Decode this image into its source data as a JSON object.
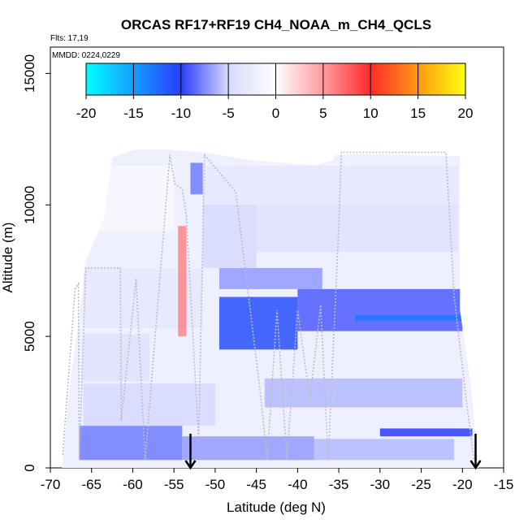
{
  "chart_data": {
    "type": "heatmap",
    "title": "ORCAS RF17+RF19 CH4_NOAA_m_CH4_QCLS",
    "annotations": [
      "Flts: 17,19",
      "MMDD: 0224,0229"
    ],
    "xlabel": "Latitude (deg N)",
    "ylabel": "Altitude (m)",
    "xlim": [
      -70,
      -15
    ],
    "ylim": [
      0,
      16000
    ],
    "x_ticks": [
      -70,
      -65,
      -60,
      -55,
      -50,
      -45,
      -40,
      -35,
      -30,
      -25,
      -20,
      -15
    ],
    "y_ticks": [
      0,
      5000,
      10000,
      15000
    ],
    "colorbar": {
      "ticks": [
        -20,
        -15,
        -10,
        -5,
        0,
        5,
        10,
        15,
        20
      ],
      "range": [
        -20,
        20
      ],
      "stops": [
        {
          "v": -20,
          "c": "#00ffff"
        },
        {
          "v": -10,
          "c": "#2a3cff"
        },
        {
          "v": -5,
          "c": "#d6d9ff"
        },
        {
          "v": 0,
          "c": "#ffffff"
        },
        {
          "v": 5,
          "c": "#ff9aa0"
        },
        {
          "v": 10,
          "c": "#ff2a2a"
        },
        {
          "v": 15,
          "c": "#ff9a10"
        },
        {
          "v": 20,
          "c": "#ffff10"
        }
      ]
    },
    "coverage_outline": [
      [
        -68.6,
        0
      ],
      [
        -67.7,
        3000
      ],
      [
        -66.2,
        6500
      ],
      [
        -65.8,
        7800
      ],
      [
        -63.5,
        9500
      ],
      [
        -62.5,
        11800
      ],
      [
        -59.8,
        12100
      ],
      [
        -55.5,
        12100
      ],
      [
        -51.5,
        12000
      ],
      [
        -45.5,
        11700
      ],
      [
        -38.0,
        11500
      ],
      [
        -35.7,
        11700
      ],
      [
        -35.4,
        11900
      ],
      [
        -33.0,
        11950
      ],
      [
        -20.3,
        11850
      ],
      [
        -20.3,
        6000
      ],
      [
        -19.0,
        3200
      ],
      [
        -18.0,
        0
      ]
    ],
    "anomaly_bands": [
      {
        "lat": [
          -66.5,
          -54
        ],
        "alt": [
          300,
          1600
        ],
        "value": -8
      },
      {
        "lat": [
          -54,
          -38
        ],
        "alt": [
          300,
          1200
        ],
        "value": -7
      },
      {
        "lat": [
          -38,
          -21
        ],
        "alt": [
          300,
          1100
        ],
        "value": -6
      },
      {
        "lat": [
          -30,
          -18.8
        ],
        "alt": [
          1200,
          1500
        ],
        "value": -10
      },
      {
        "lat": [
          -66,
          -50
        ],
        "alt": [
          1600,
          3200
        ],
        "value": -5
      },
      {
        "lat": [
          -44,
          -20
        ],
        "alt": [
          2300,
          3400
        ],
        "value": -6
      },
      {
        "lat": [
          -66,
          -58
        ],
        "alt": [
          3300,
          5100
        ],
        "value": -4
      },
      {
        "lat": [
          -49.5,
          -40
        ],
        "alt": [
          4500,
          6500
        ],
        "value": -11
      },
      {
        "lat": [
          -40,
          -20
        ],
        "alt": [
          5200,
          6800
        ],
        "value": -9
      },
      {
        "lat": [
          -33,
          -20
        ],
        "alt": [
          5600,
          5800
        ],
        "value": -13
      },
      {
        "lat": [
          -49.5,
          -37
        ],
        "alt": [
          6800,
          7600
        ],
        "value": -7
      },
      {
        "lat": [
          -66,
          -51.5
        ],
        "alt": [
          5300,
          7600
        ],
        "value": -3
      },
      {
        "lat": [
          -51.5,
          -45
        ],
        "alt": [
          7600,
          10000
        ],
        "value": -5
      },
      {
        "lat": [
          -45,
          -20.5
        ],
        "alt": [
          8200,
          10000
        ],
        "value": -4
      },
      {
        "lat": [
          -53,
          -51.5
        ],
        "alt": [
          10400,
          11600
        ],
        "value": -8
      },
      {
        "lat": [
          -51.5,
          -20.5
        ],
        "alt": [
          10000,
          11500
        ],
        "value": -3
      },
      {
        "lat": [
          -64,
          -55
        ],
        "alt": [
          9000,
          11500
        ],
        "value": -1
      },
      {
        "lat": [
          -54.5,
          -53.5
        ],
        "alt": [
          5000,
          9200
        ],
        "value": 6
      }
    ],
    "flight_track": [
      [
        -68.5,
        500
      ],
      [
        -67.0,
        6800
      ],
      [
        -66.6,
        7000
      ],
      [
        -66.5,
        300
      ],
      [
        -65.7,
        7600
      ],
      [
        -61.5,
        7600
      ],
      [
        -61.4,
        1800
      ],
      [
        -59.6,
        7200
      ],
      [
        -58.5,
        300
      ],
      [
        -55.5,
        11900
      ],
      [
        -54.9,
        10800
      ],
      [
        -54.0,
        10600
      ],
      [
        -53.5,
        9600
      ],
      [
        -52.0,
        1000
      ],
      [
        -51.3,
        11900
      ],
      [
        -47.5,
        10500
      ],
      [
        -44.5,
        2800
      ],
      [
        -43.7,
        300
      ],
      [
        -42.5,
        6000
      ],
      [
        -41.3,
        300
      ],
      [
        -40.0,
        6000
      ],
      [
        -38.5,
        2600
      ],
      [
        -37.2,
        6200
      ],
      [
        -36.3,
        300
      ],
      [
        -35.0,
        9200
      ],
      [
        -34.7,
        12000
      ],
      [
        -22.0,
        12000
      ],
      [
        -21.0,
        6500
      ],
      [
        -19.5,
        2500
      ],
      [
        -18.6,
        300
      ]
    ],
    "profile_markers_lat": [
      -53,
      -18.4
    ]
  }
}
